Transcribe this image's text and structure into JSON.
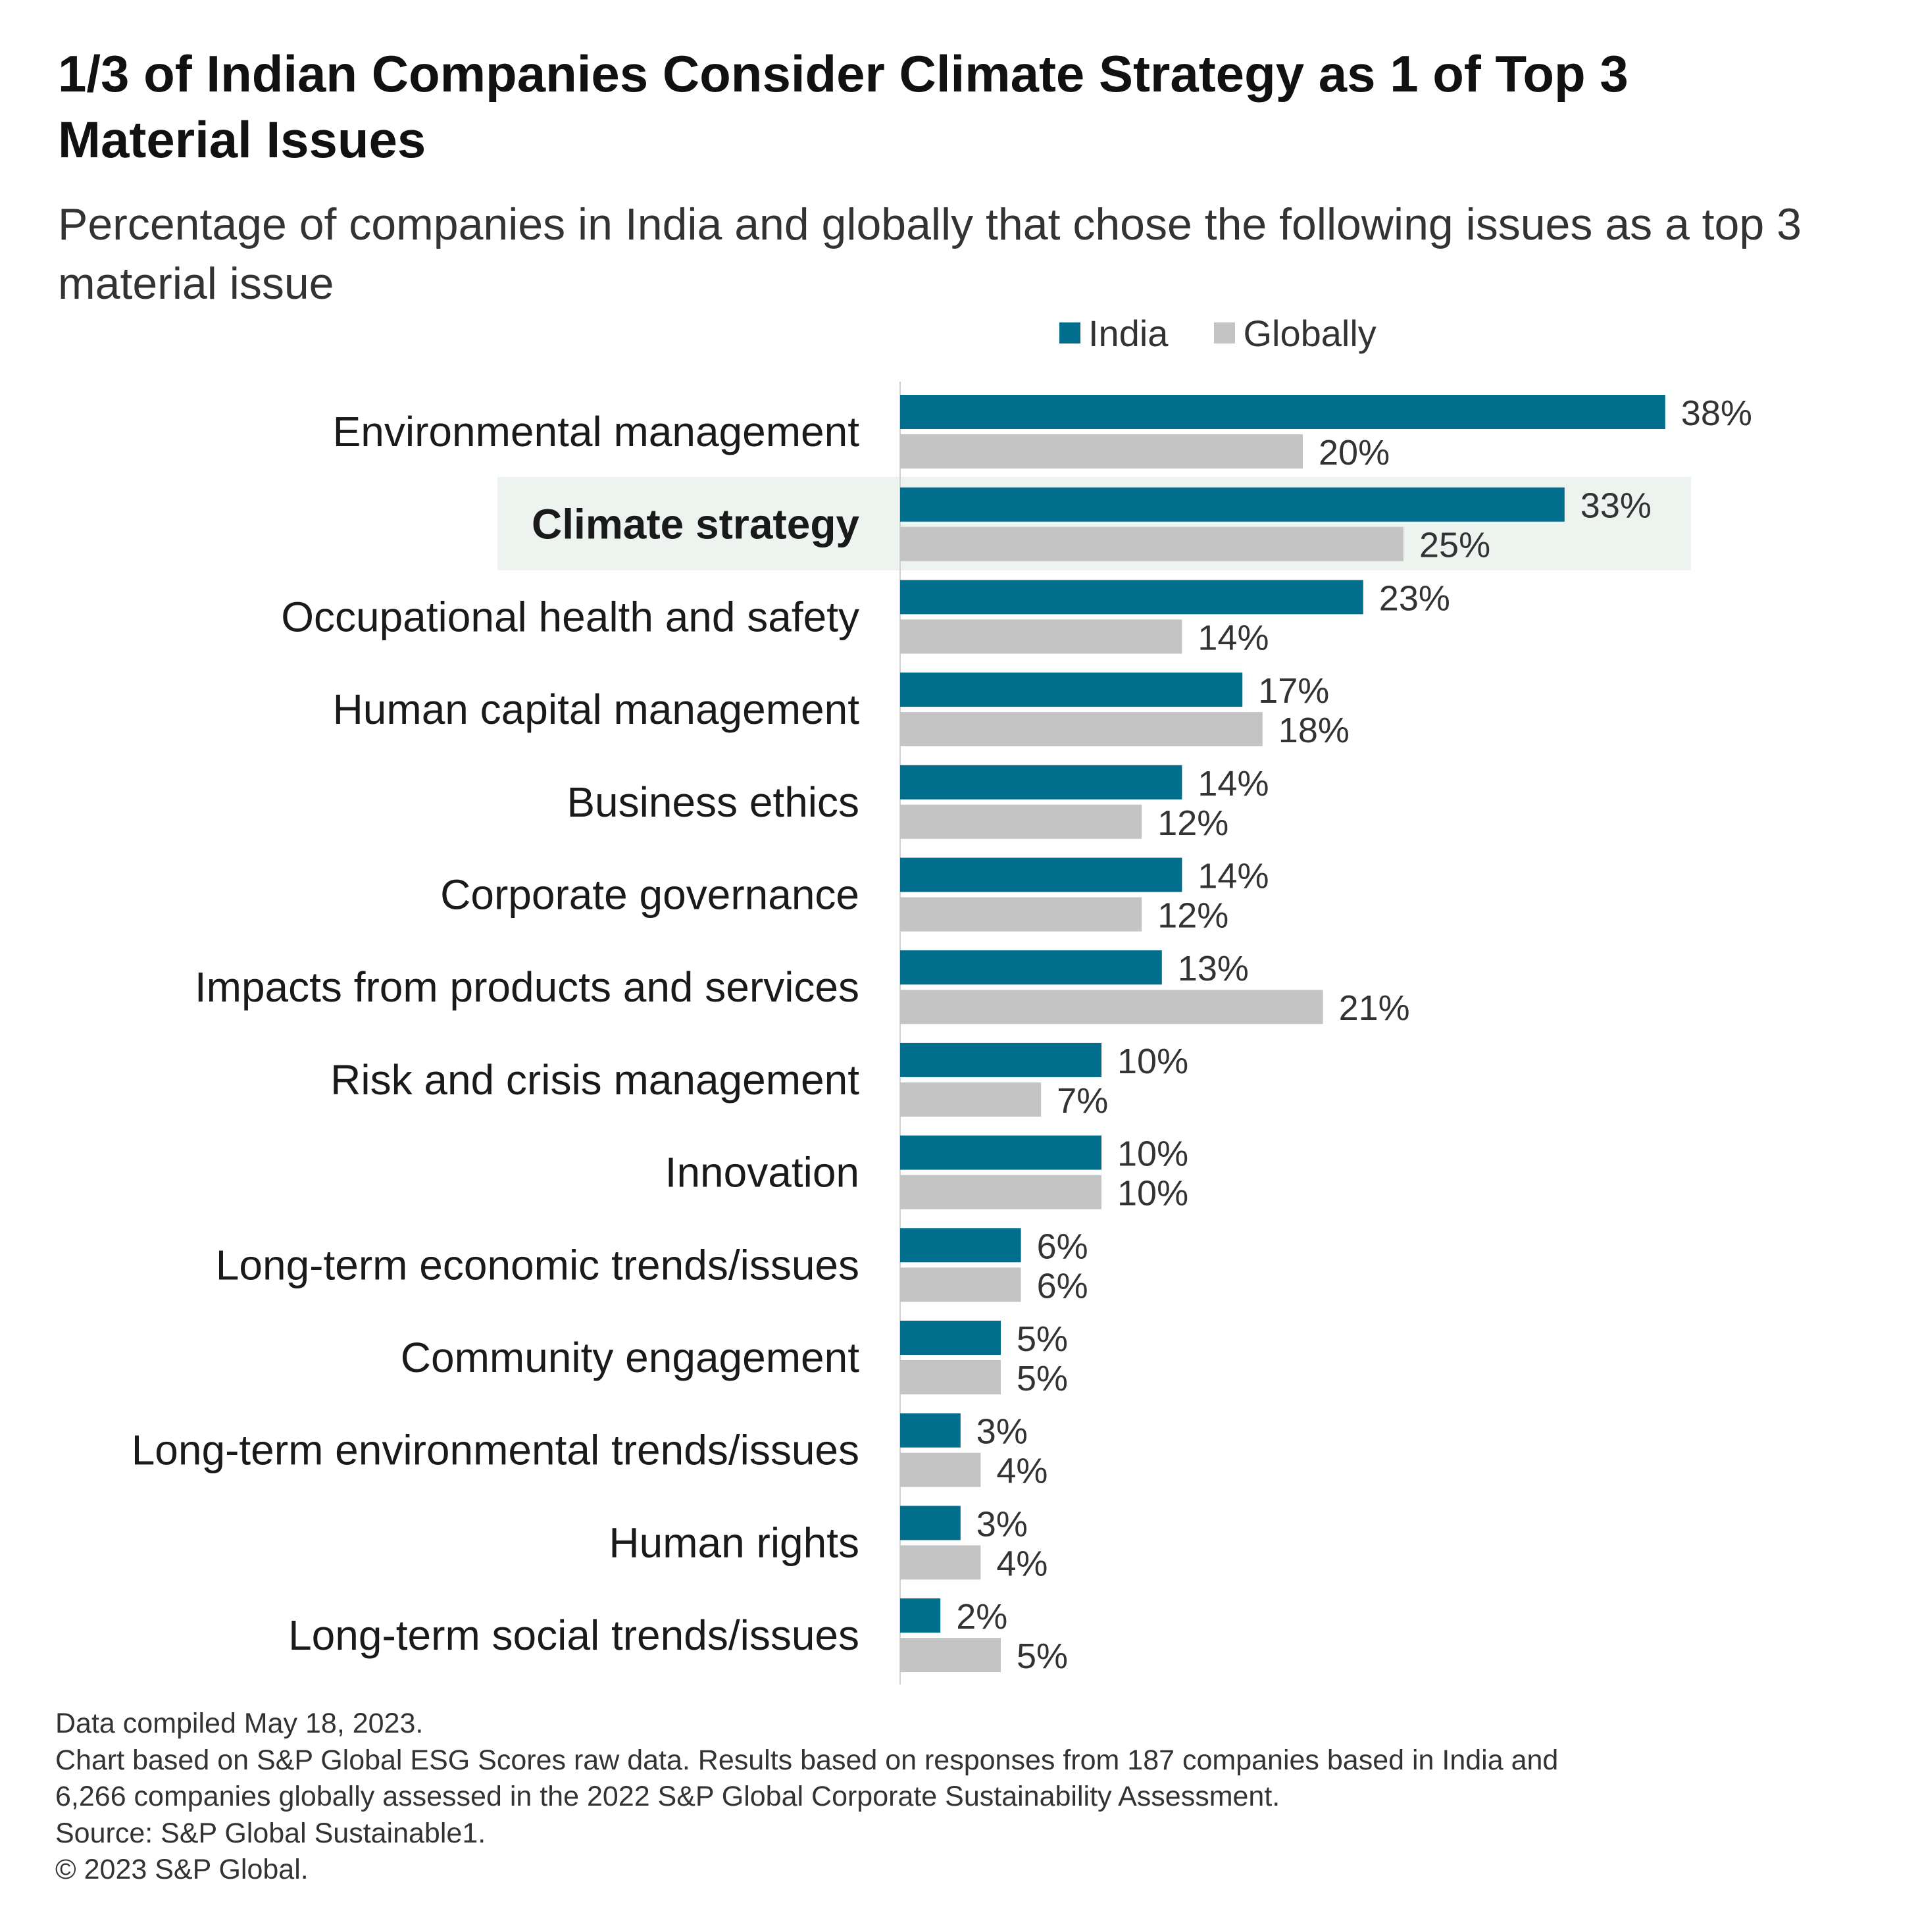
{
  "colors": {
    "india": "#006E8C",
    "globally": "#C4C4C4",
    "highlight": "#EDF3EE",
    "axis": "#D0D0D0",
    "label": "#1A1A1A",
    "value_label": "#333333"
  },
  "chart_data": {
    "type": "bar",
    "orientation": "horizontal",
    "title": "1/3 of Indian Companies Consider Climate Strategy as 1 of Top 3 Material Issues",
    "subtitle": "Percentage of companies in India and globally that chose the following issues as a top 3 material issue",
    "legend": {
      "position": "top-right",
      "entries": [
        "India",
        "Globally"
      ]
    },
    "xlabel": "",
    "ylabel": "",
    "xlim": [
      0,
      40
    ],
    "grid": false,
    "value_suffix": "%",
    "highlight_category": "Climate strategy",
    "categories": [
      "Environmental management",
      "Climate strategy",
      "Occupational health and safety",
      "Human capital management",
      "Business ethics",
      "Corporate governance",
      "Impacts from products and services",
      "Risk and crisis management",
      "Innovation",
      "Long-term economic trends/issues",
      "Community engagement",
      "Long-term environmental trends/issues",
      "Human rights",
      "Long-term social trends/issues"
    ],
    "series": [
      {
        "name": "India",
        "values": [
          38,
          33,
          23,
          17,
          14,
          14,
          13,
          10,
          10,
          6,
          5,
          3,
          3,
          2
        ]
      },
      {
        "name": "Globally",
        "values": [
          20,
          25,
          14,
          18,
          12,
          12,
          21,
          7,
          10,
          6,
          5,
          4,
          4,
          5
        ]
      }
    ]
  },
  "footnotes": {
    "compiled": "Data compiled May 18, 2023.",
    "chart_basis_line1": "Chart based on S&P Global ESG Scores raw data. Results based on responses from 187 companies based in India and",
    "chart_basis_line2": "6,266 companies globally assessed in the 2022 S&P Global Corporate Sustainability Assessment.",
    "source": "Source: S&P Global Sustainable1.",
    "copyright": "© 2023 S&P Global."
  }
}
